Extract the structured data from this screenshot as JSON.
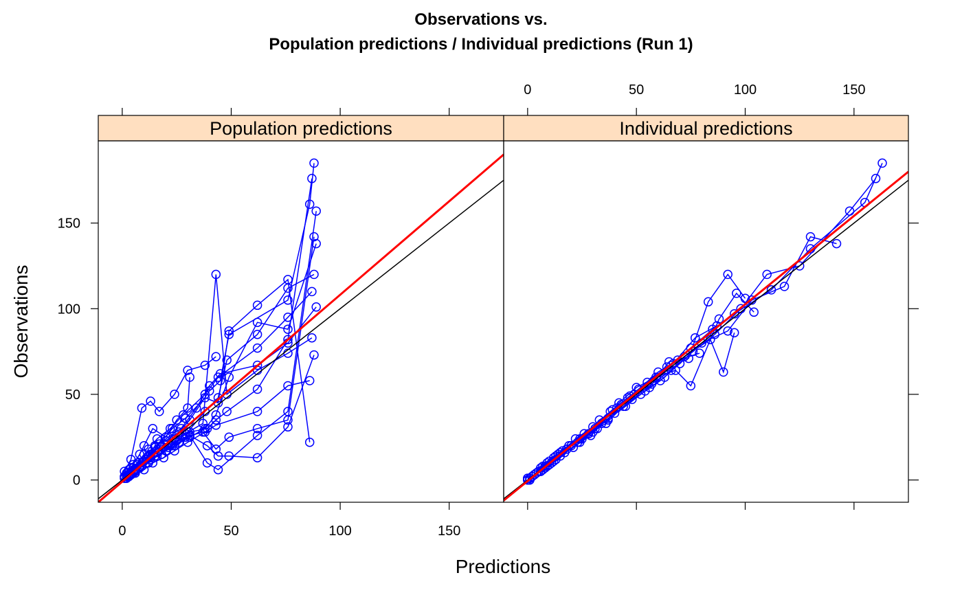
{
  "title": {
    "line1": "Observations vs.",
    "line2": "Population predictions / Individual predictions (Run 1)"
  },
  "colors": {
    "observed": "#0000ff",
    "loess": "#ff0000",
    "identity": "#000000",
    "strip": "#ffdfc0"
  },
  "chart_data": {
    "type": "scatter",
    "xlabel": "Predictions",
    "ylabel": "Observations",
    "xlim": [
      -11,
      175
    ],
    "ylim": [
      -13,
      198
    ],
    "x_ticks": [
      0,
      50,
      100,
      150
    ],
    "y_ticks": [
      0,
      50,
      100,
      150
    ],
    "marker": "open-circle",
    "panels": [
      {
        "name": "Population predictions",
        "identity_line": true,
        "smooth_line": [
          [
            -11,
            -13
          ],
          [
            175,
            190
          ]
        ],
        "series": [
          {
            "x": [
              1,
              2,
              3,
              5,
              8,
              10,
              14,
              20,
              25,
              30,
              31
            ],
            "y": [
              2,
              4,
              6,
              9,
              15,
              20,
              30,
              25,
              35,
              42,
              60
            ]
          },
          {
            "x": [
              2,
              4,
              6,
              9,
              12,
              16,
              22,
              28,
              38,
              44,
              62,
              76,
              87
            ],
            "y": [
              1,
              3,
              5,
              10,
              18,
              24,
              30,
              38,
              50,
              60,
              77,
              95,
              110
            ]
          },
          {
            "x": [
              3,
              5,
              8,
              11,
              15,
              20,
              26,
              31,
              40,
              45,
              49,
              76,
              86,
              88
            ],
            "y": [
              2,
              4,
              8,
              12,
              20,
              23,
              28,
              35,
              52,
              58,
              85,
              105,
              161,
              185
            ]
          },
          {
            "x": [
              1,
              3,
              6,
              10,
              14,
              19,
              24,
              30,
              38,
              43,
              62,
              76,
              86
            ],
            "y": [
              1,
              2,
              4,
              6,
              10,
              13,
              17,
              22,
              28,
              32,
              40,
              55,
              58
            ]
          },
          {
            "x": [
              2,
              5,
              9,
              13,
              18,
              24,
              31,
              39,
              43,
              48,
              62,
              76,
              87
            ],
            "y": [
              3,
              7,
              10,
              15,
              20,
              24,
              28,
              30,
              35,
              40,
              53,
              82,
              176
            ]
          },
          {
            "x": [
              1,
              4,
              7,
              11,
              16,
              22,
              29,
              37,
              43,
              49,
              62,
              76,
              88
            ],
            "y": [
              2,
              5,
              9,
              12,
              16,
              20,
              25,
              28,
              18,
              25,
              30,
              35,
              142
            ]
          },
          {
            "x": [
              2,
              4,
              8,
              12,
              17,
              23,
              29,
              38,
              44,
              49,
              62,
              76,
              86
            ],
            "y": [
              1,
              4,
              8,
              14,
              21,
              30,
              36,
              48,
              45,
              87,
              102,
              117,
              22
            ]
          },
          {
            "x": [
              3,
              6,
              10,
              14,
              19,
              25,
              31,
              39,
              44,
              49,
              62,
              76,
              88
            ],
            "y": [
              3,
              6,
              11,
              15,
              19,
              23,
              26,
              20,
              14,
              14,
              13,
              31,
              73
            ]
          },
          {
            "x": [
              1,
              3,
              5,
              8,
              12,
              15,
              20,
              24,
              31,
              38,
              43,
              49,
              62,
              76,
              89
            ],
            "y": [
              1,
              2,
              4,
              7,
              10,
              14,
              17,
              20,
              25,
              30,
              38,
              60,
              92,
              88,
              138
            ]
          },
          {
            "x": [
              2,
              5,
              8,
              12,
              16,
              21,
              26,
              31,
              39,
              44,
              62,
              76,
              89
            ],
            "y": [
              2,
              5,
              7,
              10,
              14,
              19,
              22,
              26,
              10,
              6,
              26,
              40,
              157
            ]
          },
          {
            "x": [
              1,
              3,
              6,
              9,
              13,
              18,
              23,
              30,
              38,
              44,
              48,
              62,
              76,
              88
            ],
            "y": [
              2,
              3,
              5,
              8,
              12,
              15,
              20,
              28,
              40,
              48,
              70,
              85,
              112,
              120
            ]
          },
          {
            "x": [
              3,
              6,
              9,
              13,
              18,
              23,
              29,
              37,
              43,
              48,
              62,
              76,
              87
            ],
            "y": [
              2,
              6,
              9,
              13,
              15,
              21,
              27,
              33,
              120,
              50,
              64,
              74,
              83
            ]
          },
          {
            "x": [
              2,
              4,
              7,
              10,
              15,
              21,
              27,
              34,
              40,
              45,
              62,
              76,
              89
            ],
            "y": [
              4,
              7,
              10,
              15,
              19,
              25,
              30,
              42,
              55,
              62,
              67,
              80,
              101
            ]
          },
          {
            "x": [
              1,
              4,
              9,
              13,
              17,
              24,
              30,
              38,
              43
            ],
            "y": [
              5,
              12,
              42,
              46,
              40,
              50,
              64,
              67,
              72
            ]
          }
        ]
      },
      {
        "name": "Individual predictions",
        "identity_line": true,
        "smooth_line": [
          [
            -11,
            -12
          ],
          [
            175,
            180
          ]
        ],
        "series": [
          {
            "x": [
              0,
              3,
              6,
              10,
              15,
              22,
              30,
              38,
              46,
              55,
              64,
              75,
              85,
              95,
              112,
              130,
              155,
              163
            ],
            "y": [
              0,
              3,
              7,
              11,
              16,
              24,
              31,
              40,
              48,
              57,
              66,
              77,
              88,
              97,
              111,
              135,
              162,
              185
            ]
          },
          {
            "x": [
              1,
              4,
              8,
              12,
              17,
              24,
              32,
              40,
              48,
              57,
              66,
              76,
              86,
              98,
              110,
              125,
              148,
              160
            ],
            "y": [
              0,
              4,
              7,
              11,
              16,
              22,
              30,
              39,
              47,
              56,
              64,
              75,
              85,
              100,
              120,
              125,
              157,
              176
            ]
          },
          {
            "x": [
              0,
              2,
              5,
              9,
              14,
              20,
              28,
              36,
              44,
              52,
              61,
              70,
              80,
              92,
              103,
              118,
              130,
              142
            ],
            "y": [
              1,
              2,
              5,
              10,
              15,
              20,
              27,
              33,
              43,
              50,
              58,
              68,
              80,
              87,
              105,
              113,
              142,
              138
            ]
          },
          {
            "x": [
              1,
              3,
              7,
              11,
              16,
              23,
              30,
              39,
              47,
              56,
              65,
              74,
              83,
              92,
              100
            ],
            "y": [
              1,
              3,
              6,
              10,
              17,
              22,
              28,
              41,
              49,
              54,
              69,
              71,
              104,
              120,
              106
            ]
          },
          {
            "x": [
              0,
              2,
              6,
              10,
              15,
              21,
              29,
              37,
              45,
              54,
              63,
              72,
              84,
              90,
              95
            ],
            "y": [
              0,
              2,
              5,
              9,
              14,
              19,
              26,
              36,
              43,
              52,
              60,
              72,
              82,
              63,
              86
            ]
          },
          {
            "x": [
              1,
              4,
              8,
              13,
              19,
              26,
              34,
              42,
              50,
              59,
              68,
              75,
              88,
              96,
              104
            ],
            "y": [
              1,
              4,
              8,
              14,
              20,
              27,
              33,
              45,
              54,
              60,
              64,
              55,
              94,
              109,
              98
            ]
          },
          {
            "x": [
              0,
              3,
              7,
              12,
              18,
              25,
              33,
              41,
              49,
              58,
              67,
              77,
              87
            ],
            "y": [
              1,
              3,
              8,
              13,
              18,
              24,
              35,
              42,
              50,
              58,
              68,
              83,
              90
            ]
          },
          {
            "x": [
              1,
              3,
              6,
              9,
              13,
              18,
              24,
              31,
              37,
              43,
              51,
              60,
              69,
              79
            ],
            "y": [
              0,
              3,
              5,
              8,
              12,
              18,
              24,
              30,
              35,
              44,
              53,
              63,
              70,
              74
            ]
          }
        ]
      }
    ]
  }
}
